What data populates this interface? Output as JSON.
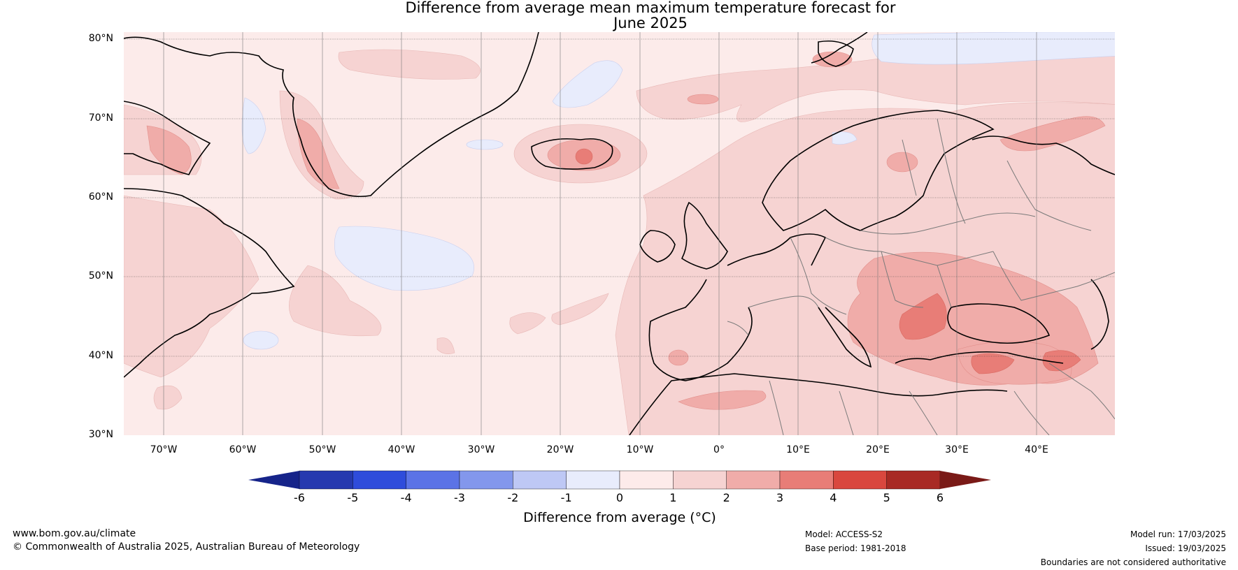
{
  "title": {
    "line1": "Difference from average mean maximum temperature forecast for",
    "line2": "June 2025"
  },
  "map": {
    "lat_labels": [
      "80°N",
      "70°N",
      "60°N",
      "50°N",
      "40°N",
      "30°N"
    ],
    "lon_labels": [
      "70°W",
      "60°W",
      "50°W",
      "40°W",
      "30°W",
      "20°W",
      "10°W",
      "0°",
      "10°E",
      "20°E",
      "30°E",
      "40°E"
    ],
    "lat_range": [
      30,
      81
    ],
    "lon_range": [
      -75,
      50
    ],
    "region_note_color_land": "#f6d3d2",
    "ocean_color": "#fcebea"
  },
  "colorbar": {
    "ticks": [
      "-6",
      "-5",
      "-4",
      "-3",
      "-2",
      "-1",
      "0",
      "1",
      "2",
      "3",
      "4",
      "5",
      "6"
    ],
    "colors": [
      "#2639af",
      "#2f4cdb",
      "#5b73e6",
      "#8397ec",
      "#bec8f5",
      "#e8ecfc",
      "#fdebea",
      "#f6d3d2",
      "#f0aca9",
      "#e87d77",
      "#d9473e",
      "#a82a24"
    ],
    "under_color": "#16248a",
    "over_color": "#7a1a17",
    "label": "Difference from average (°C)"
  },
  "footer": {
    "website": "www.bom.gov.au/climate",
    "copyright": "© Commonwealth of Australia 2025, Australian Bureau of Meteorology",
    "model": "Model: ACCESS-S2",
    "base_period": "Base period: 1981-2018",
    "model_run": "Model run: 17/03/2025",
    "issued": "Issued: 19/03/2025",
    "disclaimer": "Boundaries are not considered authoritative"
  }
}
